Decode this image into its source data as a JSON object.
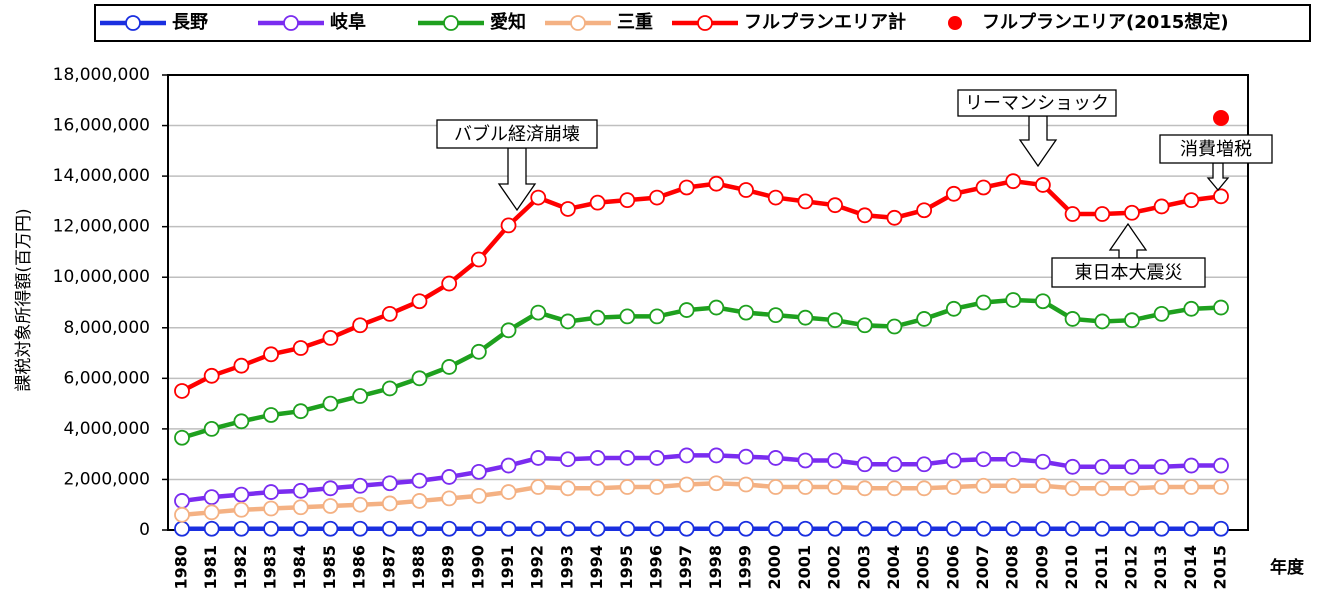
{
  "chart_data": {
    "type": "line",
    "y_label": "課税対象所得額(百万円)",
    "x_label": "年度",
    "categories": [
      "1980",
      "1981",
      "1982",
      "1983",
      "1984",
      "1985",
      "1986",
      "1987",
      "1988",
      "1989",
      "1990",
      "1991",
      "1992",
      "1993",
      "1994",
      "1995",
      "1996",
      "1997",
      "1998",
      "1999",
      "2000",
      "2001",
      "2002",
      "2003",
      "2004",
      "2005",
      "2006",
      "2007",
      "2008",
      "2009",
      "2010",
      "2011",
      "2012",
      "2013",
      "2014",
      "2015"
    ],
    "ylim": [
      0,
      18000000
    ],
    "yticks": [
      0,
      {
        "value": 2000000,
        "label": "2,000,000"
      },
      {
        "value": 4000000,
        "label": "4,000,000"
      },
      {
        "value": 6000000,
        "label": "6,000,000"
      },
      {
        "value": 8000000,
        "label": "8,000,000"
      },
      {
        "value": 10000000,
        "label": "10,000,000"
      },
      {
        "value": 12000000,
        "label": "12,000,000"
      },
      {
        "value": 14000000,
        "label": "14,000,000"
      },
      {
        "value": 16000000,
        "label": "16,000,000"
      },
      {
        "value": 18000000,
        "label": "18,000,000"
      }
    ],
    "grid": true,
    "legend": "top",
    "series": [
      {
        "name": "長野",
        "color": "#1a2fe0",
        "values": [
          50000,
          50000,
          50000,
          50000,
          50000,
          50000,
          50000,
          50000,
          50000,
          50000,
          50000,
          50000,
          50000,
          50000,
          50000,
          50000,
          50000,
          50000,
          50000,
          50000,
          50000,
          50000,
          50000,
          50000,
          50000,
          50000,
          50000,
          50000,
          50000,
          50000,
          50000,
          50000,
          50000,
          50000,
          50000,
          50000
        ]
      },
      {
        "name": "岐阜",
        "color": "#7a2cf0",
        "values": [
          1150000,
          1300000,
          1400000,
          1500000,
          1550000,
          1650000,
          1750000,
          1850000,
          1950000,
          2100000,
          2300000,
          2550000,
          2850000,
          2800000,
          2850000,
          2850000,
          2850000,
          2950000,
          2950000,
          2900000,
          2850000,
          2750000,
          2750000,
          2600000,
          2600000,
          2600000,
          2750000,
          2800000,
          2800000,
          2700000,
          2500000,
          2500000,
          2500000,
          2500000,
          2550000,
          2550000
        ]
      },
      {
        "name": "愛知",
        "color": "#1ea01e",
        "values": [
          3650000,
          4000000,
          4300000,
          4550000,
          4700000,
          5000000,
          5300000,
          5600000,
          6000000,
          6450000,
          7050000,
          7900000,
          8600000,
          8250000,
          8400000,
          8450000,
          8450000,
          8700000,
          8800000,
          8600000,
          8500000,
          8400000,
          8300000,
          8100000,
          8050000,
          8350000,
          8750000,
          9000000,
          9100000,
          9050000,
          8350000,
          8250000,
          8300000,
          8550000,
          8750000,
          8800000
        ]
      },
      {
        "name": "三重",
        "color": "#f4b183",
        "values": [
          600000,
          700000,
          800000,
          850000,
          900000,
          950000,
          1000000,
          1050000,
          1150000,
          1250000,
          1350000,
          1500000,
          1700000,
          1650000,
          1650000,
          1700000,
          1700000,
          1800000,
          1850000,
          1800000,
          1700000,
          1700000,
          1700000,
          1650000,
          1650000,
          1650000,
          1700000,
          1750000,
          1750000,
          1750000,
          1650000,
          1650000,
          1650000,
          1700000,
          1700000,
          1700000
        ]
      },
      {
        "name": "フルプランエリア計",
        "color": "#ff0000",
        "values": [
          5500000,
          6100000,
          6500000,
          6950000,
          7200000,
          7600000,
          8100000,
          8550000,
          9050000,
          9750000,
          10700000,
          12050000,
          13150000,
          12700000,
          12950000,
          13050000,
          13150000,
          13550000,
          13700000,
          13450000,
          13150000,
          13000000,
          12850000,
          12450000,
          12350000,
          12650000,
          13300000,
          13550000,
          13800000,
          13650000,
          12500000,
          12500000,
          12550000,
          12800000,
          13050000,
          13200000
        ]
      },
      {
        "name": "フルプランエリア(2015想定)",
        "color": "#ff0000",
        "marker_only": true,
        "values": [
          null,
          null,
          null,
          null,
          null,
          null,
          null,
          null,
          null,
          null,
          null,
          null,
          null,
          null,
          null,
          null,
          null,
          null,
          null,
          null,
          null,
          null,
          null,
          null,
          null,
          null,
          null,
          null,
          null,
          null,
          null,
          null,
          null,
          null,
          null,
          16300000
        ]
      }
    ],
    "annotations": [
      "バブル経済崩壊",
      "リーマンショック",
      "消費増税",
      "東日本大震災"
    ]
  }
}
